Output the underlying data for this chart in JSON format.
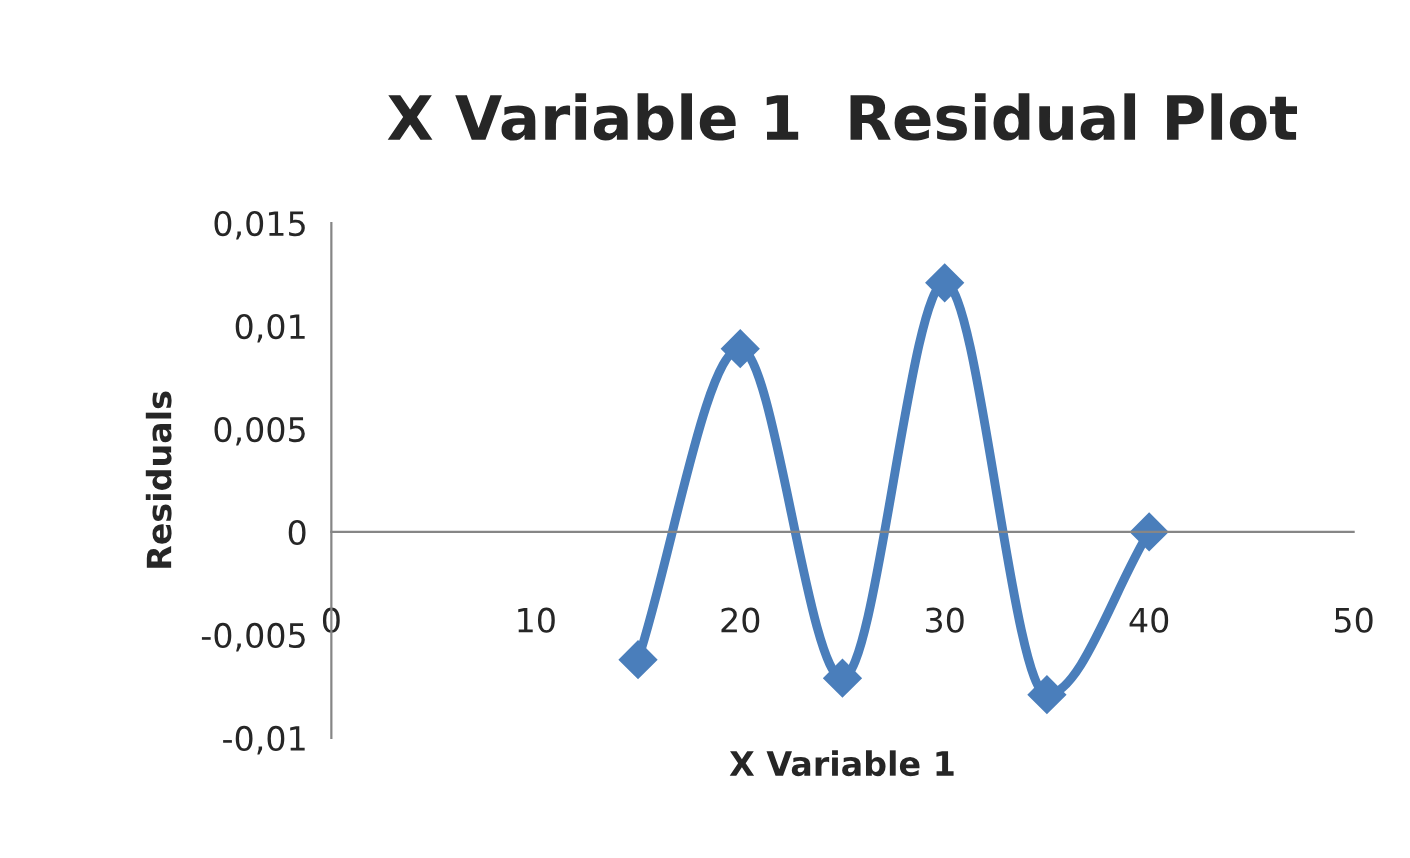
{
  "chart_data": {
    "type": "line",
    "title": "X Variable 1  Residual Plot",
    "xlabel": "X Variable 1",
    "ylabel": "Residuals",
    "x": [
      15,
      20,
      25,
      30,
      35,
      40
    ],
    "series": [
      {
        "color": "#4a7ebb",
        "values": [
          -0.0062,
          0.0089,
          -0.0071,
          0.0121,
          -0.0079,
          0.0
        ]
      }
    ],
    "xlim": [
      0,
      50
    ],
    "xticks": [
      0,
      10,
      20,
      30,
      40,
      50
    ],
    "ylim": [
      -0.01,
      0.015
    ],
    "yticks": [
      {
        "value": -0.01,
        "label": "-0,01"
      },
      {
        "value": -0.005,
        "label": "-0,005"
      },
      {
        "value": 0,
        "label": "0"
      },
      {
        "value": 0.005,
        "label": "0,005"
      },
      {
        "value": 0.01,
        "label": "0,01"
      },
      {
        "value": 0.015,
        "label": "0,015"
      }
    ],
    "marker": "diamond",
    "line_style": "solid",
    "grid": false,
    "legend": false
  }
}
